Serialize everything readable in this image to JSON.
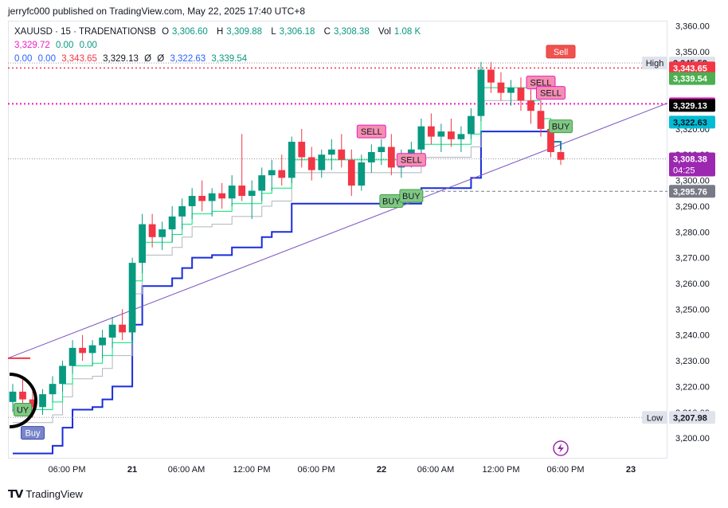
{
  "header": {
    "publisher_line": "jerryfc000 published on TradingView.com, May 22, 2025 17:40 UTC+8"
  },
  "legend": {
    "symbol": "XAUUSD · 15 · TRADENATIONSB",
    "o_label": "O",
    "o_value": "3,306.60",
    "h_label": "H",
    "h_value": "3,309.88",
    "l_label": "L",
    "l_value": "3,306.18",
    "c_label": "C",
    "c_value": "3,308.38",
    "vol_label": "Vol",
    "vol_value": "1.08 K",
    "line2": [
      "3,329.72",
      "0.00",
      "0.00"
    ],
    "line3_blue": [
      "0.00",
      "0.00"
    ],
    "line3_red": "3,343.65",
    "line3_black": "3,329.13",
    "line3_phi": [
      "Ø",
      "Ø"
    ],
    "line3_blue2": "3,322.63",
    "line3_green": "3,339.54"
  },
  "footer": {
    "brand": "TradingView"
  },
  "colors": {
    "up": "#089981",
    "down": "#f23645",
    "fast_line": "#00e676",
    "slow_line": "#1a2cdc",
    "mid_line": "#b2b5be",
    "trend": "#7e57c2",
    "magenta": "#e91ec3",
    "red_level": "#f23645"
  },
  "chart_data": {
    "type": "candlestick",
    "y_ticks": [
      "3,360.00",
      "3,350.00",
      "3,340.00",
      "3,330.00",
      "3,320.00",
      "3,310.00",
      "3,300.00",
      "3,290.00",
      "3,280.00",
      "3,270.00",
      "3,260.00",
      "3,250.00",
      "3,240.00",
      "3,230.00",
      "3,220.00",
      "3,210.00",
      "3,200.00"
    ],
    "x_ticks": [
      "06:00 PM",
      "21",
      "06:00 AM",
      "12:00 PM",
      "06:00 PM",
      "22",
      "06:00 AM",
      "12:00 PM",
      "06:00 PM",
      "23"
    ],
    "ylim": [
      3192,
      3362
    ],
    "price_tags": [
      {
        "label": "High",
        "value": "3,345.58",
        "style": "high"
      },
      {
        "label": "",
        "value": "3,343.65",
        "style": "red"
      },
      {
        "label": "",
        "value": "3,339.54",
        "style": "green"
      },
      {
        "label": "",
        "value": "3,329.72",
        "style": "magenta"
      },
      {
        "label": "",
        "value": "3,329.13",
        "style": "black"
      },
      {
        "label": "",
        "value": "3,322.63",
        "style": "cyan"
      },
      {
        "label": "",
        "value": "3,308.38",
        "sub": "04:25",
        "style": "purple"
      },
      {
        "label": "",
        "value": "3,295.76",
        "style": "gray"
      },
      {
        "label": "Low",
        "value": "3,207.98",
        "style": "low"
      }
    ],
    "signals": [
      {
        "text": "Sell",
        "x": 100,
        "y": 3350,
        "kind": "sell-red"
      },
      {
        "text": "SELL",
        "x": 65,
        "y": 3319,
        "kind": "sell"
      },
      {
        "text": "SELL",
        "x": 72,
        "y": 3308,
        "kind": "sell"
      },
      {
        "text": "SELL",
        "x": 96,
        "y": 3338,
        "kind": "sell"
      },
      {
        "text": "SELL",
        "x": 98,
        "y": 3334,
        "kind": "sell"
      },
      {
        "text": "BUY",
        "x": 69,
        "y": 3292,
        "kind": "buy"
      },
      {
        "text": "BUY",
        "x": 72,
        "y": 3294,
        "kind": "buy"
      },
      {
        "text": "BUY",
        "x": 100,
        "y": 3321,
        "kind": "buy"
      },
      {
        "text": "Buy",
        "x": 4,
        "y": 3202,
        "kind": "buy-blue"
      },
      {
        "text": "UY",
        "x": 1,
        "y": 3211,
        "kind": "buy"
      }
    ],
    "candles": [
      [
        3214,
        3221,
        3210,
        3218
      ],
      [
        3218,
        3223,
        3213,
        3215
      ],
      [
        3215,
        3220,
        3208,
        3212
      ],
      [
        3212,
        3219,
        3209,
        3217
      ],
      [
        3217,
        3224,
        3214,
        3221
      ],
      [
        3221,
        3230,
        3218,
        3228
      ],
      [
        3228,
        3238,
        3225,
        3235
      ],
      [
        3235,
        3240,
        3230,
        3233
      ],
      [
        3233,
        3238,
        3228,
        3236
      ],
      [
        3236,
        3242,
        3231,
        3239
      ],
      [
        3239,
        3247,
        3235,
        3244
      ],
      [
        3244,
        3250,
        3238,
        3241
      ],
      [
        3241,
        3270,
        3238,
        3268
      ],
      [
        3268,
        3287,
        3264,
        3283
      ],
      [
        3283,
        3287,
        3274,
        3278
      ],
      [
        3278,
        3284,
        3273,
        3281
      ],
      [
        3281,
        3290,
        3276,
        3286
      ],
      [
        3286,
        3293,
        3281,
        3290
      ],
      [
        3290,
        3297,
        3285,
        3294
      ],
      [
        3294,
        3300,
        3288,
        3292
      ],
      [
        3292,
        3297,
        3286,
        3295
      ],
      [
        3295,
        3299,
        3289,
        3293
      ],
      [
        3293,
        3302,
        3290,
        3298
      ],
      [
        3298,
        3318,
        3292,
        3294
      ],
      [
        3294,
        3300,
        3285,
        3296
      ],
      [
        3296,
        3305,
        3292,
        3302
      ],
      [
        3302,
        3308,
        3296,
        3304
      ],
      [
        3304,
        3310,
        3298,
        3301
      ],
      [
        3301,
        3317,
        3299,
        3315
      ],
      [
        3315,
        3320,
        3305,
        3309
      ],
      [
        3309,
        3313,
        3300,
        3304
      ],
      [
        3304,
        3312,
        3301,
        3310
      ],
      [
        3310,
        3316,
        3304,
        3312
      ],
      [
        3312,
        3318,
        3305,
        3308
      ],
      [
        3308,
        3312,
        3294,
        3298
      ],
      [
        3298,
        3310,
        3296,
        3307
      ],
      [
        3307,
        3314,
        3303,
        3311
      ],
      [
        3311,
        3316,
        3306,
        3313
      ],
      [
        3313,
        3318,
        3302,
        3305
      ],
      [
        3305,
        3312,
        3301,
        3309
      ],
      [
        3309,
        3315,
        3305,
        3312
      ],
      [
        3312,
        3324,
        3310,
        3321
      ],
      [
        3321,
        3326,
        3314,
        3317
      ],
      [
        3317,
        3322,
        3311,
        3319
      ],
      [
        3319,
        3324,
        3313,
        3316
      ],
      [
        3316,
        3321,
        3311,
        3318
      ],
      [
        3318,
        3328,
        3316,
        3325
      ],
      [
        3325,
        3346,
        3323,
        3343
      ],
      [
        3343,
        3346,
        3334,
        3338
      ],
      [
        3338,
        3342,
        3331,
        3334
      ],
      [
        3334,
        3339,
        3329,
        3336
      ],
      [
        3336,
        3340,
        3327,
        3331
      ],
      [
        3331,
        3337,
        3322,
        3327
      ],
      [
        3327,
        3331,
        3317,
        3320
      ],
      [
        3320,
        3323,
        3309,
        3311
      ],
      [
        3311,
        3312,
        3306,
        3308
      ]
    ]
  }
}
